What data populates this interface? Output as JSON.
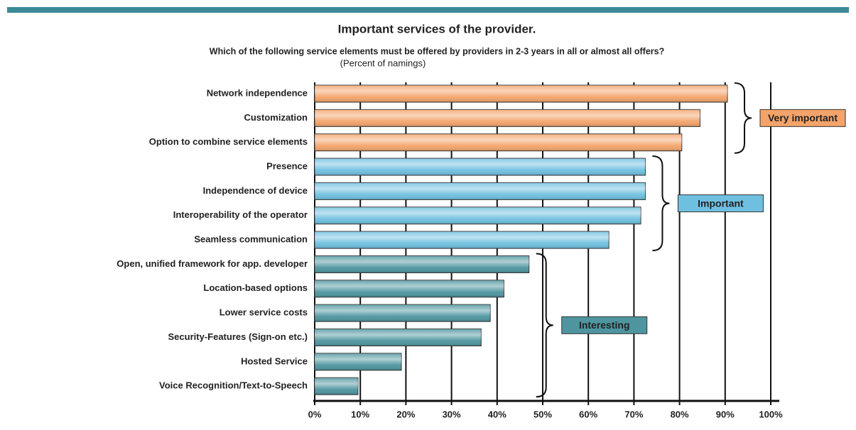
{
  "chart_data": {
    "type": "bar",
    "orientation": "horizontal",
    "title": "Important services of the provider.",
    "subtitle": "Which of the following service elements must be offered by providers in 2-3 years in all or almost all offers?",
    "unit_note": "(Percent of namings)",
    "categories": [
      "Network independence",
      "Customization",
      "Option to combine service elements",
      "Presence",
      "Independence of device",
      "Interoperability of the operator",
      "Seamless communication",
      "Open, unified framework for app. developer",
      "Location-based options",
      "Lower service costs",
      "Security-Features (Sign-on etc.)",
      "Hosted Service",
      "Voice Recognition/Text-to-Speech"
    ],
    "series": [
      {
        "name": "Very important",
        "color": "#f4a46a",
        "values": [
          90.5,
          84.5,
          80.5,
          null,
          null,
          null,
          null,
          null,
          null,
          null,
          null,
          null,
          null
        ]
      },
      {
        "name": "Important",
        "color": "#6fc0e0",
        "values": [
          null,
          null,
          null,
          72.5,
          72.5,
          71.5,
          64.5,
          null,
          null,
          null,
          null,
          null,
          null
        ]
      },
      {
        "name": "Interesting",
        "color": "#4e959f",
        "values": [
          null,
          null,
          null,
          null,
          null,
          null,
          null,
          47,
          41.5,
          38.5,
          36.5,
          19,
          9.5
        ]
      }
    ],
    "xlim": [
      0,
      100
    ],
    "xticks": [
      {
        "value": 0,
        "label": "0%"
      },
      {
        "value": 10,
        "label": "10%"
      },
      {
        "value": 20,
        "label": "20%"
      },
      {
        "value": 30,
        "label": "30%"
      },
      {
        "value": 40,
        "label": "40%"
      },
      {
        "value": 50,
        "label": "50%"
      },
      {
        "value": 60,
        "label": "60%"
      },
      {
        "value": 70,
        "label": "70%"
      },
      {
        "value": 80,
        "label": "80%"
      },
      {
        "value": 90,
        "label": "90%"
      },
      {
        "value": 100,
        "label": "100%"
      }
    ],
    "grid": true
  }
}
